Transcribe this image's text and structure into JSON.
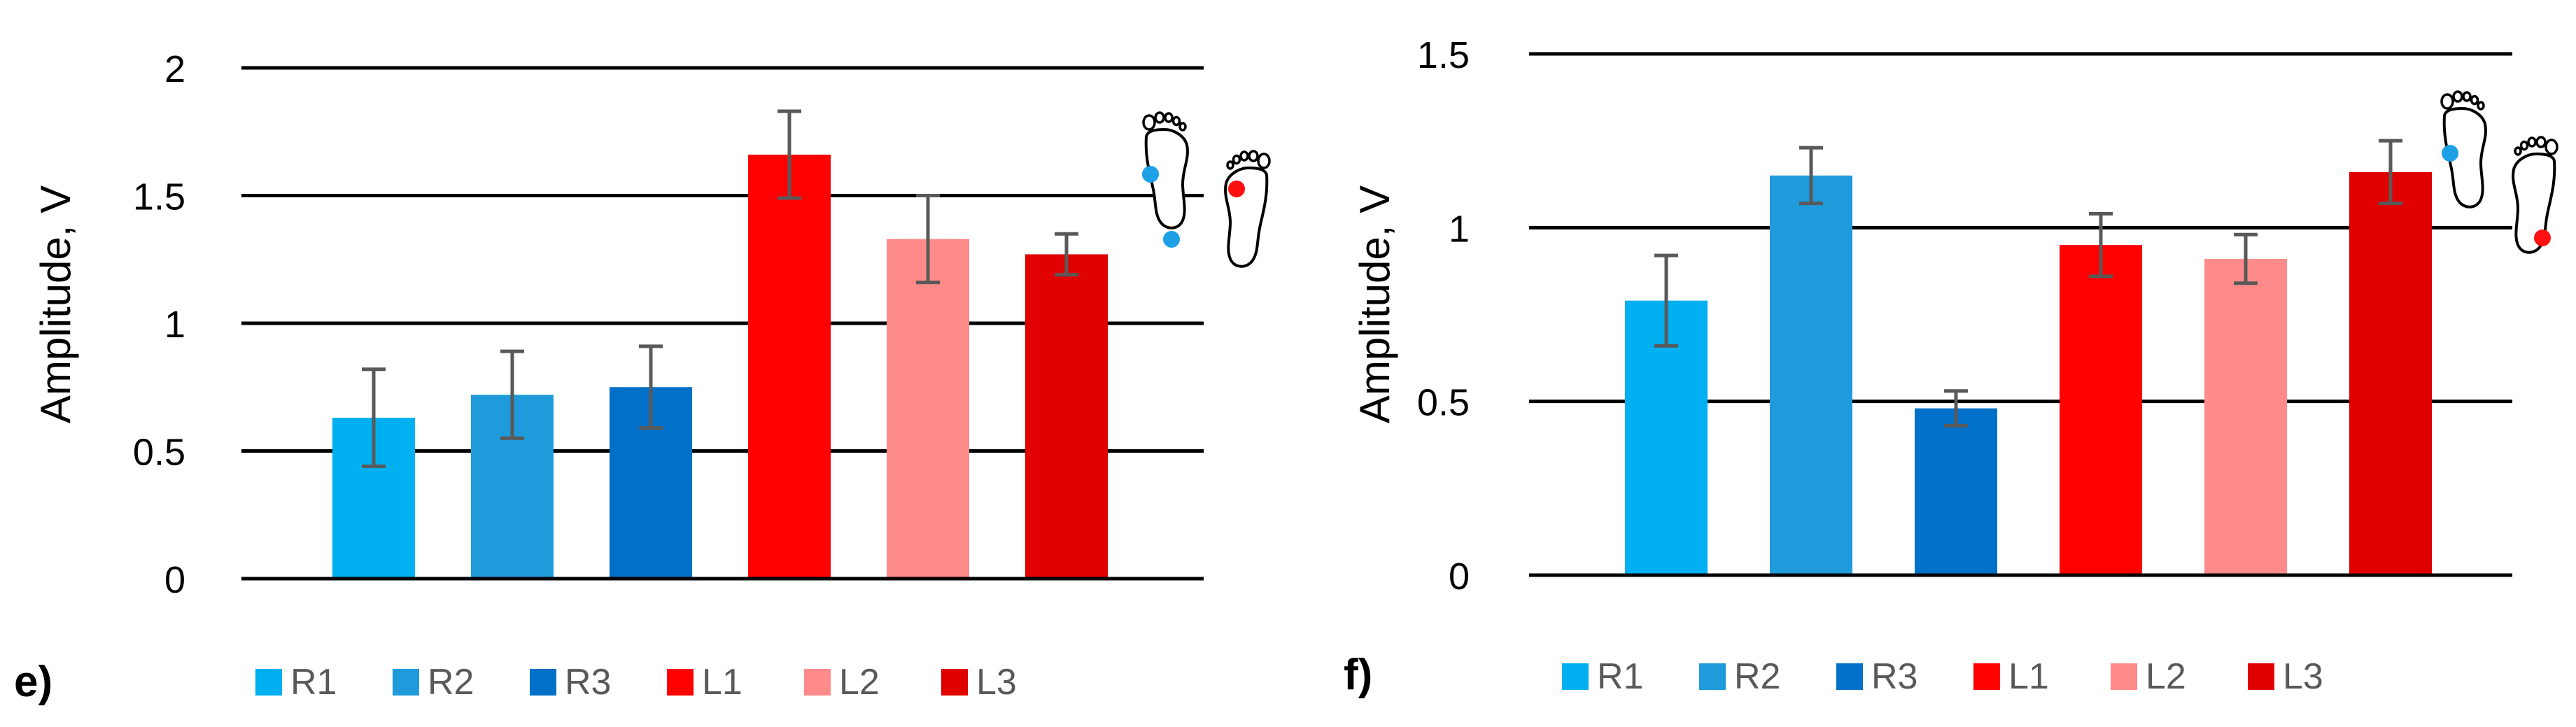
{
  "chart_data": [
    {
      "panel_label": "e)",
      "type": "bar",
      "ylabel": "Amplitude, V",
      "ylim": [
        0,
        2
      ],
      "yticks": [
        "0",
        "0.5",
        "1",
        "1.5",
        "2"
      ],
      "ytick_values": [
        0,
        0.5,
        1,
        1.5,
        2
      ],
      "grid": true,
      "categories": [
        "R1",
        "R2",
        "R3",
        "L1",
        "L2",
        "L3"
      ],
      "values": [
        0.63,
        0.72,
        0.75,
        1.66,
        1.33,
        1.27
      ],
      "errors": [
        0.19,
        0.17,
        0.16,
        0.17,
        0.17,
        0.08
      ],
      "legend": [
        "R1",
        "R2",
        "R3",
        "L1",
        "L2",
        "L3"
      ],
      "legend_position": "bottom",
      "inset": "feet icon: blue dots on right foot (front and heel), red dot on left foot (front)"
    },
    {
      "panel_label": "f)",
      "type": "bar",
      "ylabel": "Amplitude, V",
      "ylim": [
        0,
        1.5
      ],
      "yticks": [
        "0",
        "0.5",
        "1",
        "1.5"
      ],
      "ytick_values": [
        0,
        0.5,
        1,
        1.5
      ],
      "grid": true,
      "categories": [
        "R1",
        "R2",
        "R3",
        "L1",
        "L2",
        "L3"
      ],
      "values": [
        0.79,
        1.15,
        0.48,
        0.95,
        0.91,
        1.16
      ],
      "errors": [
        0.13,
        0.08,
        0.05,
        0.09,
        0.07,
        0.09
      ],
      "legend": [
        "R1",
        "R2",
        "R3",
        "L1",
        "L2",
        "L3"
      ],
      "legend_position": "bottom",
      "inset": "feet icon: blue dot on right foot (front), red dot on left foot (heel)"
    }
  ],
  "colors": {
    "R1": "#00b0f0",
    "R2": "#1f9bdc",
    "R3": "#0070c8",
    "L1": "#ff0000",
    "L2": "#ff8a8a",
    "L3": "#e00000",
    "error_bar": "#595959",
    "grid": "#000000",
    "text": "#000000",
    "foot_blue": "#1ea0e6",
    "foot_red": "#ff1010"
  }
}
